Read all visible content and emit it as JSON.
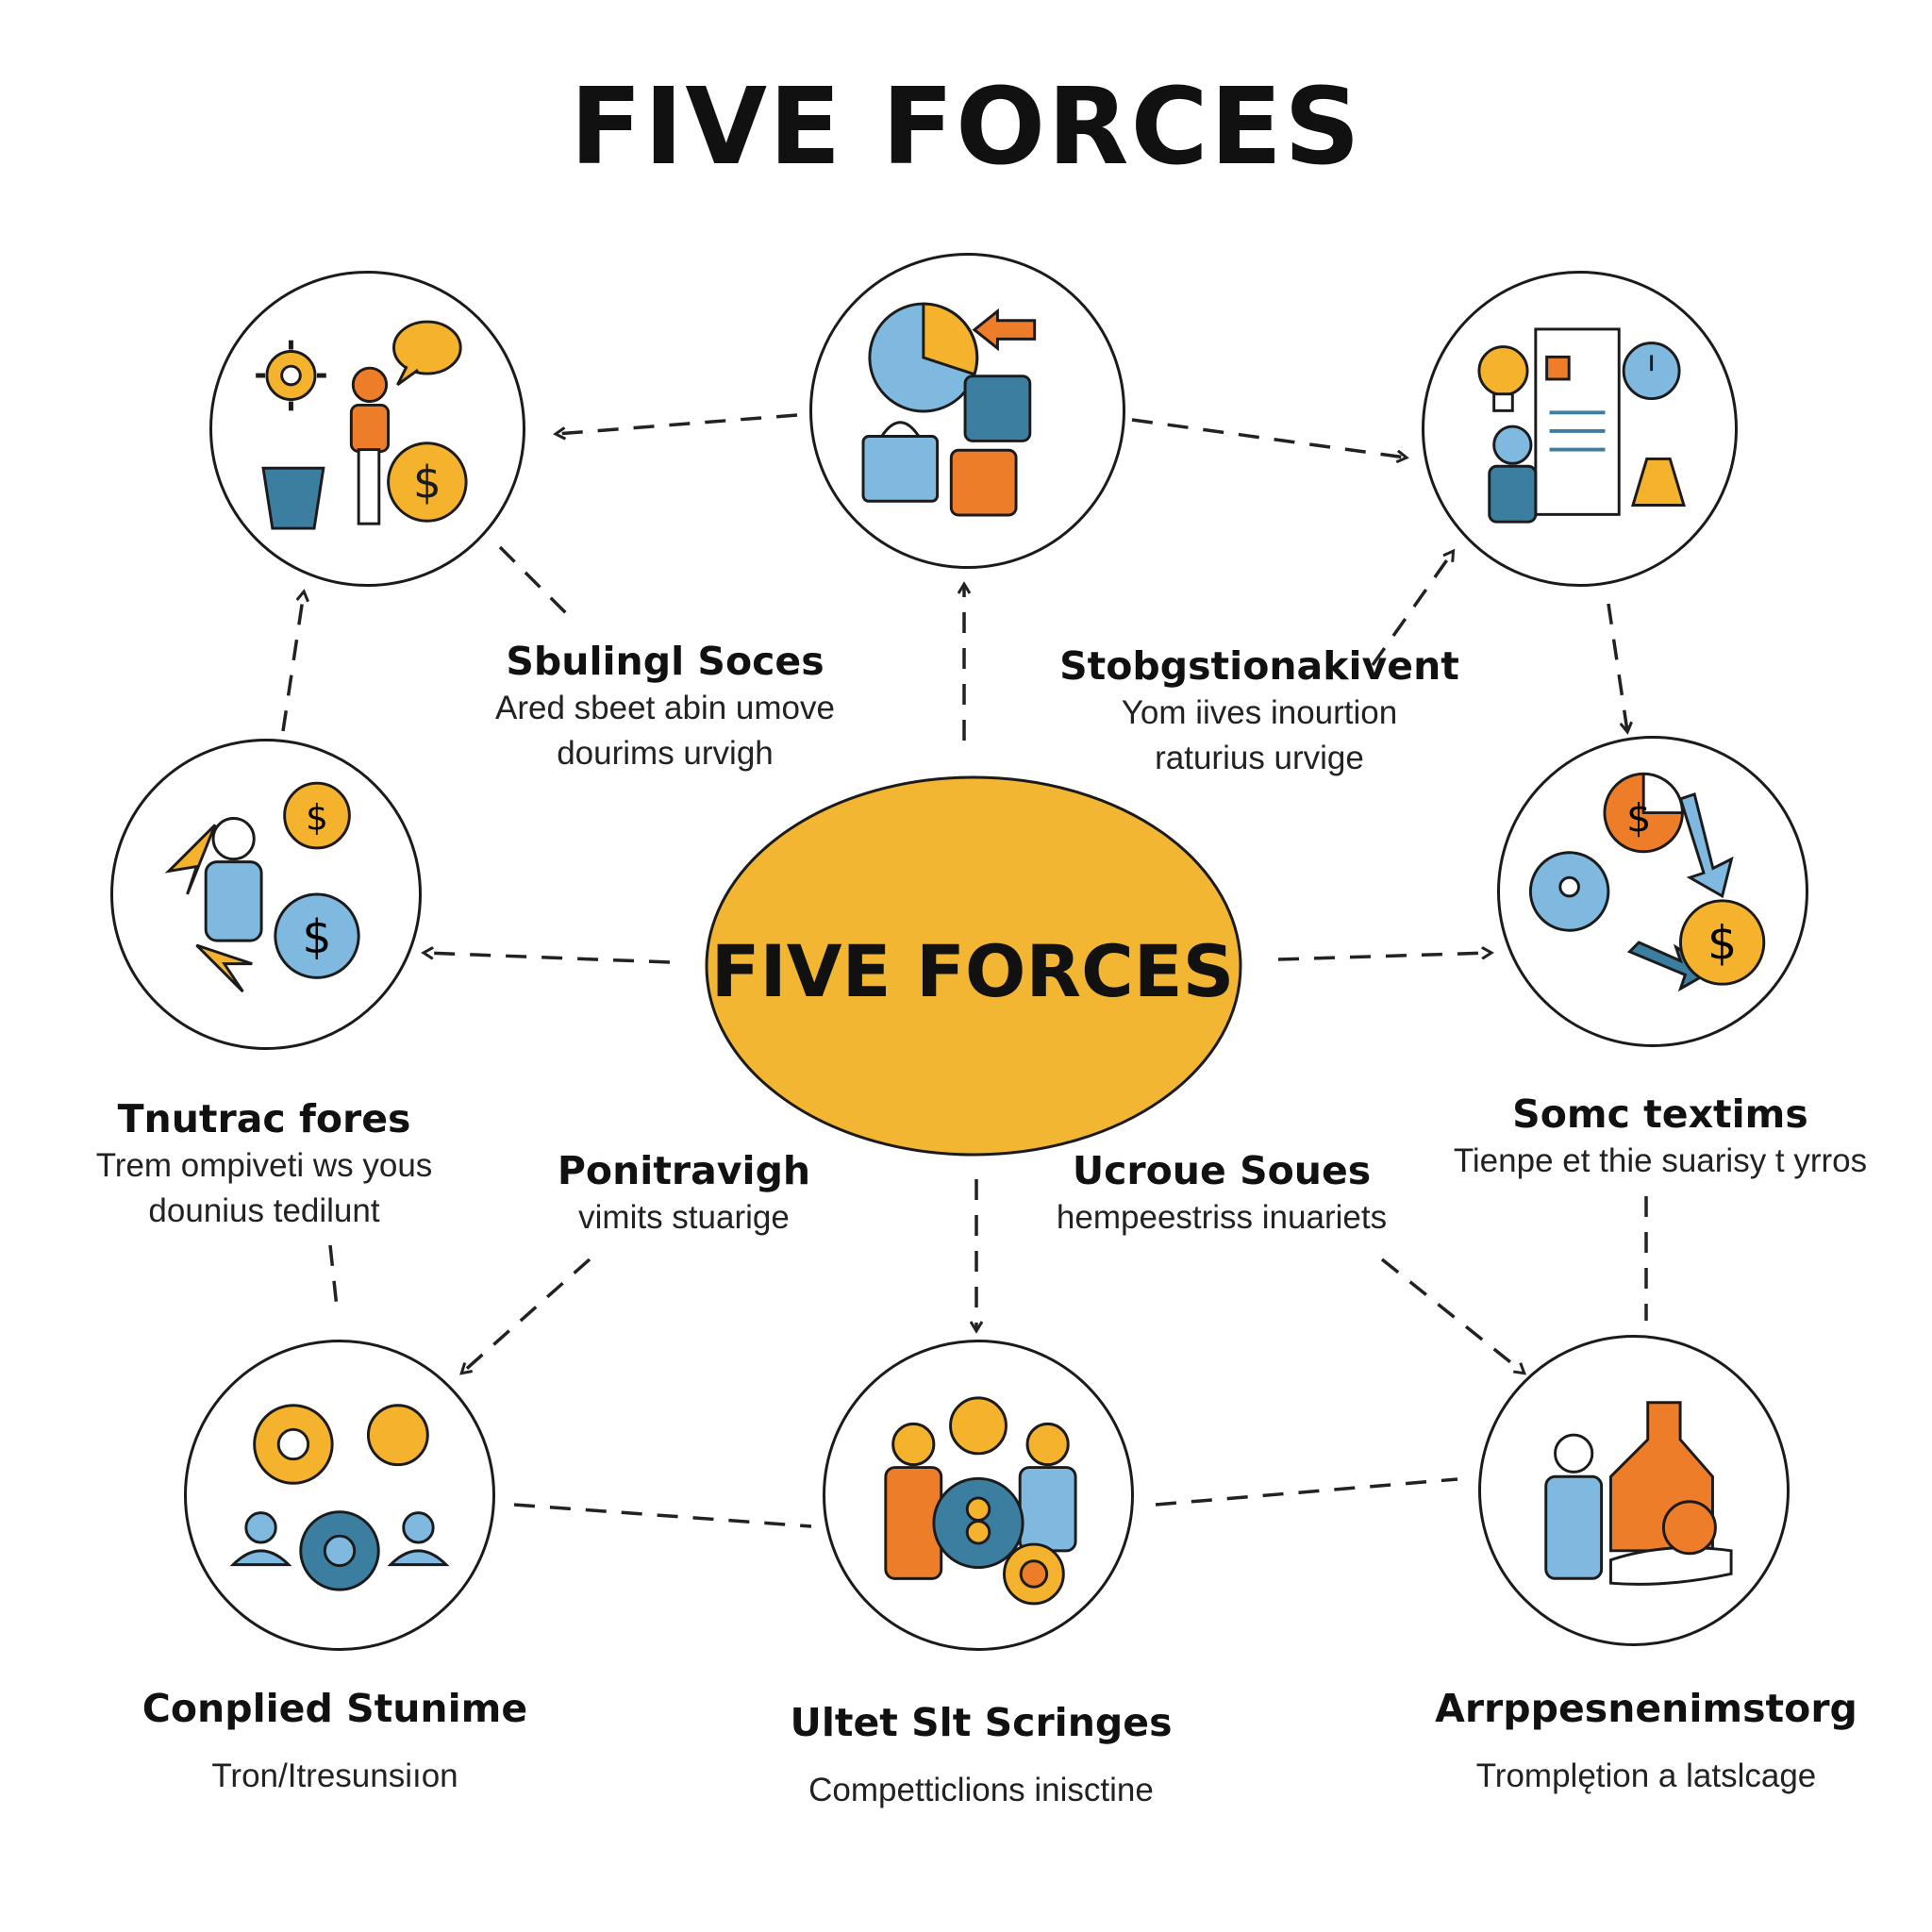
{
  "title": "FIVE FORCES",
  "center": {
    "label": "FIVE FORCES",
    "color": "#f2b632"
  },
  "colors": {
    "orange": "#ee7d2a",
    "blue": "#7fb9df",
    "gold": "#f5b22d",
    "teal": "#3c7ea0",
    "outline": "#1b1b1b"
  },
  "nodes": [
    {
      "name": "node-top-left",
      "icons": [
        "gear-icon",
        "person-icon",
        "speech-bubble-icon",
        "dollar-coin-icon",
        "bucket-icon"
      ]
    },
    {
      "name": "node-top-center",
      "icons": [
        "pie-chart-icon",
        "arrow-icon",
        "puzzle-icon",
        "shopping-bag-icon"
      ]
    },
    {
      "name": "node-top-right",
      "icons": [
        "lightbulb-icon",
        "document-icon",
        "clock-gear-icon",
        "person-icon",
        "flask-icon"
      ]
    },
    {
      "name": "node-mid-left",
      "icons": [
        "person-icon",
        "dollar-coin-icon",
        "cycle-arrow-icon"
      ]
    },
    {
      "name": "node-mid-right",
      "icons": [
        "pie-dollar-icon",
        "arrows-icon",
        "dollar-coin-icon",
        "network-icon"
      ]
    },
    {
      "name": "node-bottom-left",
      "icons": [
        "gear-icon",
        "people-icon"
      ]
    },
    {
      "name": "node-bottom-center",
      "icons": [
        "people-icon",
        "gear-icon",
        "coin-icon"
      ]
    },
    {
      "name": "node-bottom-right",
      "icons": [
        "person-icon",
        "bottle-icon",
        "hand-icon"
      ]
    }
  ],
  "labels": {
    "top_center_left": {
      "heading": "Sbulingl Soces",
      "line1": "Ared sbeet abin umove",
      "line2": "dourims urvigh"
    },
    "top_center_right": {
      "heading": "Stobgstionakivent",
      "line1": "Yom iives inourtion",
      "line2": "raturius urvige"
    },
    "mid_left": {
      "heading": "Tnutrac fores",
      "line1": "Trem ompiveti ws yous",
      "line2": "dounius tedilunt"
    },
    "center_left": {
      "heading": "Ponitravigh",
      "line1": "vimits stuarige"
    },
    "center_right": {
      "heading": "Ucroue Soues",
      "line1": "hempeestriss inuariets"
    },
    "mid_right": {
      "heading": "Somc textims",
      "line1": "Tienpe et thie suarisy t yrros"
    },
    "bottom_left": {
      "heading": "Conplied Stunime",
      "line1": "Tron/Itresunsiıon"
    },
    "bottom_center": {
      "heading": "Ultet Slt Scringes",
      "line1": "Competticlions inisctine"
    },
    "bottom_right": {
      "heading": "Arrppesnenimstorg",
      "line1": "Tromplętion a latslcage"
    }
  }
}
